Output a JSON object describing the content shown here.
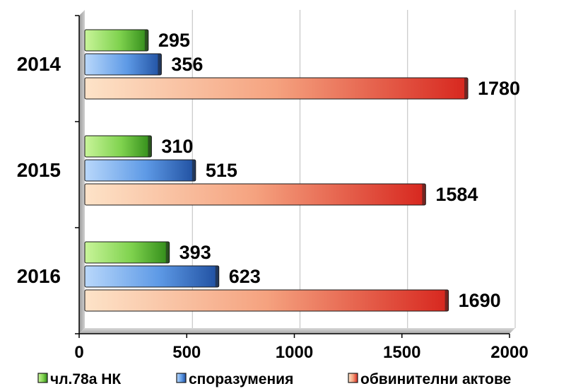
{
  "chart_data": {
    "type": "bar",
    "orientation": "horizontal",
    "categories": [
      "2014",
      "2015",
      "2016"
    ],
    "series": [
      {
        "name": "чл.78а НК",
        "values": [
          295,
          310,
          393
        ],
        "color": "#5fbf3a"
      },
      {
        "name": "споразумения",
        "values": [
          356,
          515,
          623
        ],
        "color": "#3f7fd0"
      },
      {
        "name": "обвинителни актове",
        "values": [
          1780,
          1584,
          1690
        ],
        "color": "#e8453c"
      }
    ],
    "xlim": [
      0,
      2000
    ],
    "x_ticks": [
      "0",
      "500",
      "1000",
      "1500",
      "2000"
    ],
    "grid": "vertical",
    "legend_position": "bottom",
    "data_labels": true
  }
}
